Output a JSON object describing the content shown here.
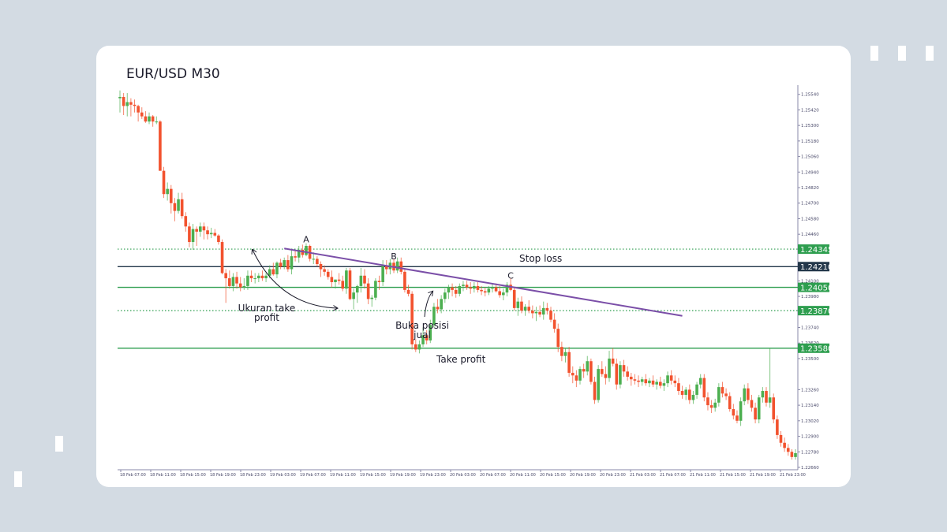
{
  "chart_data": {
    "type": "candlestick",
    "title": "EUR/USD M30",
    "colors": {
      "bull": "#4caf50",
      "bear": "#f2522e",
      "trendline": "#7b4fa8",
      "level_green": "#2e9e4f",
      "level_dark": "#23374a"
    },
    "y_ticks": [
      "1.25540",
      "1.25420",
      "1.25300",
      "1.25180",
      "1.25060",
      "1.24940",
      "1.24820",
      "1.24700",
      "1.24580",
      "1.24460",
      "1.24100",
      "1.23980",
      "1.23740",
      "1.23620",
      "1.23500",
      "1.23260",
      "1.23140",
      "1.23020",
      "1.22900",
      "1.22780",
      "1.22660"
    ],
    "x_ticks": [
      "18 Feb 07:00",
      "18 Feb 11:00",
      "18 Feb 15:00",
      "18 Feb 19:00",
      "18 Feb 23:00",
      "19 Feb 03:00",
      "19 Feb 07:00",
      "19 Feb 11:00",
      "19 Feb 15:00",
      "19 Feb 19:00",
      "19 Feb 23:00",
      "20 Feb 03:00",
      "20 Feb 07:00",
      "20 Feb 11:00",
      "20 Feb 15:00",
      "20 Feb 19:00",
      "20 Feb 23:00",
      "21 Feb 03:00",
      "21 Feb 07:00",
      "21 Feb 11:00",
      "21 Feb 15:00",
      "21 Feb 19:00",
      "21 Feb 23:00"
    ],
    "levels": [
      {
        "price": 1.24345,
        "label": "1.24345",
        "style": "dotted",
        "color": "level_green"
      },
      {
        "price": 1.2421,
        "label": "1.24210",
        "style": "solid",
        "color": "level_dark",
        "caption": "Stop loss"
      },
      {
        "price": 1.2405,
        "label": "1.24050",
        "style": "solid",
        "color": "level_green"
      },
      {
        "price": 1.2387,
        "label": "1.23870",
        "style": "dotted",
        "color": "level_green"
      },
      {
        "price": 1.2358,
        "label": "1.23580",
        "style": "solid",
        "color": "level_green",
        "caption": "Take profit"
      }
    ],
    "points": [
      {
        "label": "A",
        "index": 51,
        "price": 1.2436
      },
      {
        "label": "B",
        "index": 75,
        "price": 1.2423
      },
      {
        "label": "C",
        "index": 107,
        "price": 1.2408
      }
    ],
    "trendline": {
      "from": {
        "index": 45,
        "price": 1.2435
      },
      "to": {
        "index": 154,
        "price": 1.2383
      }
    },
    "annotations": [
      {
        "lines": [
          "Ukuran take",
          "profit"
        ]
      },
      {
        "lines": [
          "Buka posisi",
          "jual"
        ]
      }
    ],
    "candles": [
      [
        1.2551,
        1.2557,
        1.254,
        1.2552
      ],
      [
        1.2552,
        1.2555,
        1.2538,
        1.2545
      ],
      [
        1.2545,
        1.2555,
        1.2537,
        1.2548
      ],
      [
        1.2548,
        1.2551,
        1.2537,
        1.2546
      ],
      [
        1.2546,
        1.255,
        1.254,
        1.2545
      ],
      [
        1.2545,
        1.2546,
        1.2533,
        1.254
      ],
      [
        1.254,
        1.2544,
        1.2535,
        1.2537
      ],
      [
        1.2537,
        1.2541,
        1.2532,
        1.2533
      ],
      [
        1.2533,
        1.254,
        1.2531,
        1.2537
      ],
      [
        1.2537,
        1.2538,
        1.2529,
        1.2533
      ],
      [
        1.2533,
        1.2537,
        1.2531,
        1.2533
      ],
      [
        1.2533,
        1.2534,
        1.2495,
        1.2495
      ],
      [
        1.2495,
        1.2498,
        1.2474,
        1.2477
      ],
      [
        1.2477,
        1.2486,
        1.2472,
        1.2481
      ],
      [
        1.2481,
        1.2484,
        1.2462,
        1.247
      ],
      [
        1.247,
        1.2474,
        1.2456,
        1.2464
      ],
      [
        1.2464,
        1.2478,
        1.2462,
        1.2473
      ],
      [
        1.2473,
        1.2478,
        1.2458,
        1.246
      ],
      [
        1.246,
        1.2463,
        1.2448,
        1.2452
      ],
      [
        1.2452,
        1.2455,
        1.2436,
        1.244
      ],
      [
        1.244,
        1.2454,
        1.2434,
        1.245
      ],
      [
        1.245,
        1.2452,
        1.2437,
        1.2448
      ],
      [
        1.2448,
        1.2455,
        1.2444,
        1.2452
      ],
      [
        1.2452,
        1.2455,
        1.2442,
        1.2449
      ],
      [
        1.2449,
        1.2452,
        1.2442,
        1.2446
      ],
      [
        1.2446,
        1.2451,
        1.2443,
        1.2447
      ],
      [
        1.2447,
        1.245,
        1.2444,
        1.2445
      ],
      [
        1.2445,
        1.2446,
        1.2438,
        1.244
      ],
      [
        1.244,
        1.2442,
        1.2415,
        1.2416
      ],
      [
        1.2416,
        1.2419,
        1.2393,
        1.2412
      ],
      [
        1.2412,
        1.2418,
        1.2404,
        1.2406
      ],
      [
        1.2406,
        1.2416,
        1.2402,
        1.2413
      ],
      [
        1.2413,
        1.2417,
        1.2404,
        1.2408
      ],
      [
        1.2408,
        1.2413,
        1.2402,
        1.2405
      ],
      [
        1.2405,
        1.2412,
        1.2403,
        1.2406
      ],
      [
        1.2406,
        1.2418,
        1.2403,
        1.2414
      ],
      [
        1.2414,
        1.2418,
        1.2409,
        1.2412
      ],
      [
        1.2412,
        1.2416,
        1.2408,
        1.2412
      ],
      [
        1.2412,
        1.2416,
        1.2409,
        1.2414
      ],
      [
        1.2414,
        1.2418,
        1.241,
        1.2412
      ],
      [
        1.2412,
        1.2416,
        1.2409,
        1.2414
      ],
      [
        1.2414,
        1.2422,
        1.2412,
        1.2419
      ],
      [
        1.2419,
        1.2424,
        1.2414,
        1.2415
      ],
      [
        1.2415,
        1.2425,
        1.2412,
        1.2424
      ],
      [
        1.2424,
        1.2427,
        1.2419,
        1.2421
      ],
      [
        1.2421,
        1.2428,
        1.2419,
        1.2426
      ],
      [
        1.2426,
        1.243,
        1.2417,
        1.2419
      ],
      [
        1.2419,
        1.2434,
        1.2415,
        1.2429
      ],
      [
        1.2429,
        1.2433,
        1.2425,
        1.2428
      ],
      [
        1.2428,
        1.2437,
        1.2424,
        1.2434
      ],
      [
        1.2434,
        1.2438,
        1.2428,
        1.243
      ],
      [
        1.243,
        1.2439,
        1.2429,
        1.2437
      ],
      [
        1.2437,
        1.2438,
        1.2425,
        1.2427
      ],
      [
        1.2427,
        1.2432,
        1.2423,
        1.2427
      ],
      [
        1.2427,
        1.2429,
        1.2421,
        1.2423
      ],
      [
        1.2423,
        1.2425,
        1.2413,
        1.2419
      ],
      [
        1.2419,
        1.2422,
        1.2414,
        1.2417
      ],
      [
        1.2417,
        1.2419,
        1.2411,
        1.2413
      ],
      [
        1.2413,
        1.2418,
        1.2405,
        1.2409
      ],
      [
        1.2409,
        1.2411,
        1.2404,
        1.2411
      ],
      [
        1.2411,
        1.2416,
        1.2407,
        1.241
      ],
      [
        1.241,
        1.2414,
        1.2402,
        1.2404
      ],
      [
        1.2404,
        1.242,
        1.24,
        1.2418
      ],
      [
        1.2418,
        1.242,
        1.2395,
        1.2396
      ],
      [
        1.2396,
        1.2404,
        1.2388,
        1.2401
      ],
      [
        1.2401,
        1.2407,
        1.2393,
        1.2406
      ],
      [
        1.2406,
        1.242,
        1.2401,
        1.2414
      ],
      [
        1.2414,
        1.2419,
        1.2404,
        1.2408
      ],
      [
        1.2408,
        1.2412,
        1.2392,
        1.2396
      ],
      [
        1.2396,
        1.2399,
        1.239,
        1.2397
      ],
      [
        1.2397,
        1.2412,
        1.2395,
        1.241
      ],
      [
        1.241,
        1.2414,
        1.2403,
        1.2409
      ],
      [
        1.2409,
        1.2426,
        1.2406,
        1.2422
      ],
      [
        1.2422,
        1.2426,
        1.2415,
        1.2419
      ],
      [
        1.2419,
        1.2427,
        1.2415,
        1.2424
      ],
      [
        1.2424,
        1.2427,
        1.2416,
        1.2418
      ],
      [
        1.2418,
        1.2428,
        1.2416,
        1.2425
      ],
      [
        1.2425,
        1.2428,
        1.2415,
        1.2417
      ],
      [
        1.2417,
        1.2419,
        1.2401,
        1.2403
      ],
      [
        1.2403,
        1.2407,
        1.2398,
        1.24
      ],
      [
        1.24,
        1.2402,
        1.2357,
        1.2361
      ],
      [
        1.2361,
        1.2365,
        1.2355,
        1.2357
      ],
      [
        1.2357,
        1.2364,
        1.2354,
        1.2361
      ],
      [
        1.2361,
        1.2374,
        1.2359,
        1.2368
      ],
      [
        1.2368,
        1.2372,
        1.2361,
        1.2364
      ],
      [
        1.2364,
        1.238,
        1.2362,
        1.2376
      ],
      [
        1.2376,
        1.2393,
        1.2374,
        1.239
      ],
      [
        1.239,
        1.2396,
        1.2385,
        1.2388
      ],
      [
        1.2388,
        1.2399,
        1.2385,
        1.2396
      ],
      [
        1.2396,
        1.2404,
        1.2393,
        1.2401
      ],
      [
        1.2401,
        1.2407,
        1.2396,
        1.2405
      ],
      [
        1.2405,
        1.2408,
        1.2398,
        1.2403
      ],
      [
        1.2403,
        1.2406,
        1.2397,
        1.24
      ],
      [
        1.24,
        1.2408,
        1.2398,
        1.2406
      ],
      [
        1.2406,
        1.241,
        1.2402,
        1.2407
      ],
      [
        1.2407,
        1.241,
        1.2403,
        1.2405
      ],
      [
        1.2405,
        1.2409,
        1.24,
        1.2404
      ],
      [
        1.2404,
        1.2409,
        1.2401,
        1.2406
      ],
      [
        1.2406,
        1.2409,
        1.2401,
        1.2403
      ],
      [
        1.2403,
        1.2406,
        1.2399,
        1.2402
      ],
      [
        1.2402,
        1.2405,
        1.2398,
        1.2401
      ],
      [
        1.2401,
        1.2406,
        1.2399,
        1.2404
      ],
      [
        1.2404,
        1.2408,
        1.2401,
        1.2405
      ],
      [
        1.2405,
        1.2408,
        1.2401,
        1.2402
      ],
      [
        1.2402,
        1.2406,
        1.2397,
        1.2399
      ],
      [
        1.2399,
        1.2404,
        1.2395,
        1.2401
      ],
      [
        1.2401,
        1.2409,
        1.2398,
        1.2407
      ],
      [
        1.2407,
        1.2412,
        1.2402,
        1.2403
      ],
      [
        1.2403,
        1.2405,
        1.2387,
        1.2389
      ],
      [
        1.2389,
        1.2397,
        1.2383,
        1.2394
      ],
      [
        1.2394,
        1.2398,
        1.2385,
        1.2387
      ],
      [
        1.2387,
        1.2392,
        1.2383,
        1.239
      ],
      [
        1.239,
        1.2395,
        1.2385,
        1.2387
      ],
      [
        1.2387,
        1.2391,
        1.2381,
        1.2385
      ],
      [
        1.2385,
        1.239,
        1.2379,
        1.2386
      ],
      [
        1.2386,
        1.2391,
        1.2382,
        1.2384
      ],
      [
        1.2384,
        1.2394,
        1.238,
        1.2389
      ],
      [
        1.2389,
        1.2393,
        1.2384,
        1.2387
      ],
      [
        1.2387,
        1.239,
        1.2378,
        1.238
      ],
      [
        1.238,
        1.2385,
        1.237,
        1.2373
      ],
      [
        1.2373,
        1.2377,
        1.2355,
        1.2359
      ],
      [
        1.2359,
        1.2363,
        1.2348,
        1.2352
      ],
      [
        1.2352,
        1.2358,
        1.2347,
        1.2355
      ],
      [
        1.2355,
        1.2359,
        1.2336,
        1.2339
      ],
      [
        1.2339,
        1.2344,
        1.2331,
        1.2337
      ],
      [
        1.2337,
        1.2341,
        1.2328,
        1.2333
      ],
      [
        1.2333,
        1.2344,
        1.233,
        1.2342
      ],
      [
        1.2342,
        1.2346,
        1.2335,
        1.234
      ],
      [
        1.234,
        1.2352,
        1.2337,
        1.2348
      ],
      [
        1.2348,
        1.235,
        1.233,
        1.2332
      ],
      [
        1.2332,
        1.2336,
        1.2315,
        1.2318
      ],
      [
        1.2318,
        1.2345,
        1.2316,
        1.2342
      ],
      [
        1.2342,
        1.2348,
        1.2336,
        1.2338
      ],
      [
        1.2338,
        1.2344,
        1.233,
        1.2335
      ],
      [
        1.2335,
        1.2356,
        1.2332,
        1.235
      ],
      [
        1.235,
        1.2358,
        1.2344,
        1.2346
      ],
      [
        1.2346,
        1.235,
        1.2326,
        1.233
      ],
      [
        1.233,
        1.2348,
        1.2327,
        1.2345
      ],
      [
        1.2345,
        1.2349,
        1.2336,
        1.234
      ],
      [
        1.234,
        1.2344,
        1.2333,
        1.2336
      ],
      [
        1.2336,
        1.2339,
        1.2329,
        1.2334
      ],
      [
        1.2334,
        1.2338,
        1.233,
        1.2333
      ],
      [
        1.2333,
        1.2337,
        1.2328,
        1.2332
      ],
      [
        1.2332,
        1.2336,
        1.2329,
        1.2334
      ],
      [
        1.2334,
        1.2338,
        1.2329,
        1.2331
      ],
      [
        1.2331,
        1.2335,
        1.2328,
        1.2333
      ],
      [
        1.2333,
        1.2337,
        1.2328,
        1.233
      ],
      [
        1.233,
        1.2334,
        1.2326,
        1.2332
      ],
      [
        1.2332,
        1.2336,
        1.2327,
        1.2329
      ],
      [
        1.2329,
        1.2334,
        1.2325,
        1.2331
      ],
      [
        1.2331,
        1.234,
        1.2328,
        1.2337
      ],
      [
        1.2337,
        1.2341,
        1.233,
        1.2333
      ],
      [
        1.2333,
        1.2337,
        1.2328,
        1.2331
      ],
      [
        1.2331,
        1.2335,
        1.2322,
        1.2325
      ],
      [
        1.2325,
        1.2329,
        1.2319,
        1.2322
      ],
      [
        1.2322,
        1.2328,
        1.2318,
        1.2326
      ],
      [
        1.2326,
        1.233,
        1.2315,
        1.2318
      ],
      [
        1.2318,
        1.2325,
        1.2315,
        1.2322
      ],
      [
        1.2322,
        1.2332,
        1.2319,
        1.233
      ],
      [
        1.233,
        1.2338,
        1.2327,
        1.2335
      ],
      [
        1.2335,
        1.2338,
        1.2317,
        1.232
      ],
      [
        1.232,
        1.2324,
        1.231,
        1.2314
      ],
      [
        1.2314,
        1.2318,
        1.2308,
        1.2312
      ],
      [
        1.2312,
        1.2319,
        1.2309,
        1.2316
      ],
      [
        1.2316,
        1.2331,
        1.2313,
        1.2328
      ],
      [
        1.2328,
        1.2332,
        1.232,
        1.2323
      ],
      [
        1.2323,
        1.2327,
        1.2318,
        1.2321
      ],
      [
        1.2321,
        1.2324,
        1.2309,
        1.2311
      ],
      [
        1.2311,
        1.2315,
        1.2303,
        1.2306
      ],
      [
        1.2306,
        1.231,
        1.23,
        1.2302
      ],
      [
        1.2302,
        1.232,
        1.2298,
        1.2317
      ],
      [
        1.2317,
        1.233,
        1.2314,
        1.2327
      ],
      [
        1.2327,
        1.2331,
        1.2315,
        1.2318
      ],
      [
        1.2318,
        1.2322,
        1.2309,
        1.2312
      ],
      [
        1.2312,
        1.2316,
        1.23,
        1.2303
      ],
      [
        1.2303,
        1.2322,
        1.23,
        1.232
      ],
      [
        1.232,
        1.2328,
        1.2316,
        1.2325
      ],
      [
        1.2325,
        1.2328,
        1.2313,
        1.2316
      ],
      [
        1.2316,
        1.2358,
        1.2312,
        1.232
      ],
      [
        1.232,
        1.2323,
        1.23,
        1.2303
      ],
      [
        1.2303,
        1.2306,
        1.2288,
        1.2291
      ],
      [
        1.2291,
        1.2294,
        1.2282,
        1.2285
      ],
      [
        1.2285,
        1.2289,
        1.2278,
        1.2281
      ],
      [
        1.2281,
        1.2284,
        1.2275,
        1.2278
      ],
      [
        1.2278,
        1.228,
        1.2272,
        1.2274
      ],
      [
        1.2274,
        1.228,
        1.2272,
        1.2277
      ]
    ]
  }
}
